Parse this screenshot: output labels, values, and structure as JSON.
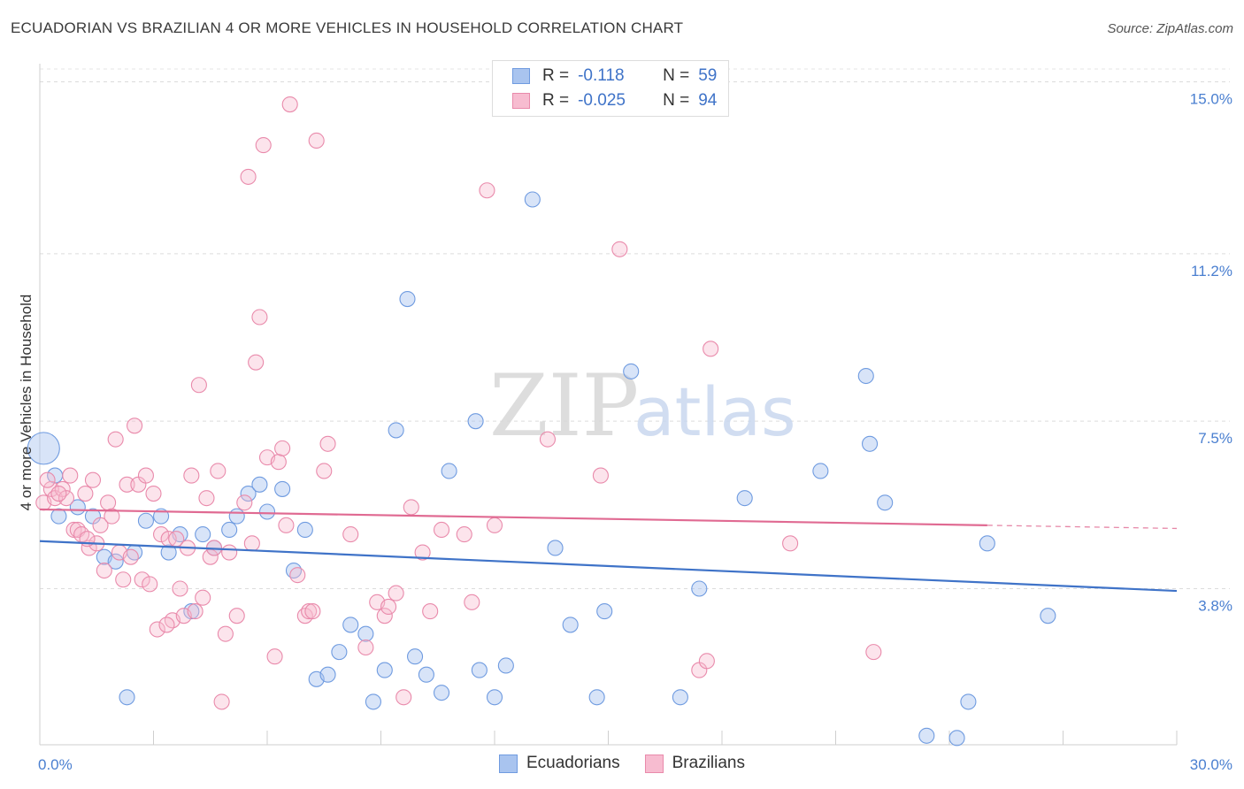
{
  "header": {
    "title": "ECUADORIAN VS BRAZILIAN 4 OR MORE VEHICLES IN HOUSEHOLD CORRELATION CHART",
    "source": "Source: ZipAtlas.com"
  },
  "watermark": {
    "zip": "ZIP",
    "atlas": "atlas"
  },
  "legend": {
    "rows": [
      {
        "r_label": "R =",
        "r_value": "-0.118",
        "n_label": "N =",
        "n_value": "59",
        "color": "#a9c4ef",
        "stroke": "#6f9be0"
      },
      {
        "r_label": "R =",
        "r_value": "-0.025",
        "n_label": "N =",
        "n_value": "94",
        "color": "#f7bcd0",
        "stroke": "#e98aab"
      }
    ]
  },
  "bottom_legend": {
    "items": [
      "Ecuadorians",
      "Brazilians"
    ]
  },
  "chart_data": {
    "type": "scatter",
    "title": "ECUADORIAN VS BRAZILIAN 4 OR MORE VEHICLES IN HOUSEHOLD CORRELATION CHART",
    "xlabel": "",
    "ylabel": "4 or more Vehicles in Household",
    "xlim": [
      0,
      30
    ],
    "ylim": [
      0.35,
      15.4
    ],
    "x_tick_labels": [
      "0.0%",
      "30.0%"
    ],
    "y_ticks": [
      3.8,
      7.5,
      11.2,
      15.0
    ],
    "y_tick_labels": [
      "3.8%",
      "7.5%",
      "11.2%",
      "15.0%"
    ],
    "grid": true,
    "legend_position": "top-center",
    "colors": {
      "ecuadorians": "#6f9be0",
      "brazilians": "#e98aab",
      "ecuadorians_line": "#3f73c8",
      "brazilians_line": "#e06a92"
    },
    "series": [
      {
        "name": "Ecuadorians",
        "trend": {
          "x0": 0,
          "y0": 4.85,
          "x1": 30,
          "y1": 3.75
        },
        "points": [
          [
            0.1,
            6.9
          ],
          [
            0.4,
            6.3
          ],
          [
            0.5,
            5.4
          ],
          [
            1.0,
            5.6
          ],
          [
            1.4,
            5.4
          ],
          [
            1.7,
            4.5
          ],
          [
            2.0,
            4.4
          ],
          [
            2.3,
            1.4
          ],
          [
            2.5,
            4.6
          ],
          [
            2.8,
            5.3
          ],
          [
            3.2,
            5.4
          ],
          [
            3.4,
            4.6
          ],
          [
            3.7,
            5.0
          ],
          [
            4.0,
            3.3
          ],
          [
            4.3,
            5.0
          ],
          [
            4.6,
            4.7
          ],
          [
            5.0,
            5.1
          ],
          [
            5.2,
            5.4
          ],
          [
            5.5,
            5.9
          ],
          [
            5.8,
            6.1
          ],
          [
            6.0,
            5.5
          ],
          [
            6.4,
            6.0
          ],
          [
            6.7,
            4.2
          ],
          [
            7.0,
            5.1
          ],
          [
            7.3,
            1.8
          ],
          [
            7.6,
            1.9
          ],
          [
            7.9,
            2.4
          ],
          [
            8.2,
            3.0
          ],
          [
            8.6,
            2.8
          ],
          [
            8.8,
            1.3
          ],
          [
            9.1,
            2.0
          ],
          [
            9.4,
            7.3
          ],
          [
            9.7,
            10.2
          ],
          [
            9.9,
            2.3
          ],
          [
            10.2,
            1.9
          ],
          [
            10.6,
            1.5
          ],
          [
            10.8,
            6.4
          ],
          [
            11.5,
            7.5
          ],
          [
            11.6,
            2.0
          ],
          [
            12.0,
            1.4
          ],
          [
            12.3,
            2.1
          ],
          [
            13.0,
            12.4
          ],
          [
            13.6,
            4.7
          ],
          [
            14.0,
            3.0
          ],
          [
            14.7,
            1.4
          ],
          [
            14.9,
            3.3
          ],
          [
            15.6,
            8.6
          ],
          [
            16.9,
            1.4
          ],
          [
            17.4,
            3.8
          ],
          [
            18.6,
            5.8
          ],
          [
            20.6,
            6.4
          ],
          [
            21.8,
            8.5
          ],
          [
            21.9,
            7.0
          ],
          [
            22.3,
            5.7
          ],
          [
            23.4,
            0.55
          ],
          [
            24.2,
            0.5
          ],
          [
            24.5,
            1.3
          ],
          [
            25.0,
            4.8
          ],
          [
            26.6,
            3.2
          ]
        ]
      },
      {
        "name": "Brazilians",
        "trend": {
          "x0": 0,
          "y0": 5.55,
          "x1": 25,
          "y1": 5.2
        },
        "points": [
          [
            0.1,
            5.7
          ],
          [
            0.3,
            6.0
          ],
          [
            0.4,
            5.8
          ],
          [
            0.6,
            6.0
          ],
          [
            0.7,
            5.8
          ],
          [
            0.8,
            6.3
          ],
          [
            0.9,
            5.1
          ],
          [
            1.0,
            5.1
          ],
          [
            1.1,
            5.0
          ],
          [
            1.2,
            5.9
          ],
          [
            1.3,
            4.7
          ],
          [
            1.4,
            6.2
          ],
          [
            1.5,
            4.8
          ],
          [
            1.6,
            5.2
          ],
          [
            1.7,
            4.2
          ],
          [
            1.8,
            5.7
          ],
          [
            1.9,
            5.4
          ],
          [
            2.0,
            7.1
          ],
          [
            2.1,
            4.6
          ],
          [
            2.2,
            4.0
          ],
          [
            2.3,
            6.1
          ],
          [
            2.4,
            4.5
          ],
          [
            2.5,
            7.4
          ],
          [
            2.6,
            6.1
          ],
          [
            2.7,
            4.0
          ],
          [
            2.8,
            6.3
          ],
          [
            2.9,
            3.9
          ],
          [
            3.0,
            5.9
          ],
          [
            3.1,
            2.9
          ],
          [
            3.2,
            5.0
          ],
          [
            3.4,
            4.9
          ],
          [
            3.5,
            3.1
          ],
          [
            3.6,
            4.9
          ],
          [
            3.7,
            3.8
          ],
          [
            3.8,
            3.2
          ],
          [
            3.9,
            4.7
          ],
          [
            4.0,
            6.3
          ],
          [
            4.1,
            3.3
          ],
          [
            4.2,
            8.3
          ],
          [
            4.3,
            3.6
          ],
          [
            4.4,
            5.8
          ],
          [
            4.5,
            4.5
          ],
          [
            4.6,
            4.7
          ],
          [
            4.7,
            6.4
          ],
          [
            4.8,
            1.3
          ],
          [
            4.9,
            2.8
          ],
          [
            5.0,
            4.6
          ],
          [
            5.2,
            3.2
          ],
          [
            5.4,
            5.7
          ],
          [
            5.6,
            4.8
          ],
          [
            5.7,
            8.8
          ],
          [
            5.8,
            9.8
          ],
          [
            5.9,
            13.6
          ],
          [
            5.5,
            12.9
          ],
          [
            6.0,
            6.7
          ],
          [
            6.2,
            2.3
          ],
          [
            6.3,
            6.6
          ],
          [
            6.4,
            6.9
          ],
          [
            6.5,
            5.2
          ],
          [
            6.6,
            14.5
          ],
          [
            6.8,
            4.1
          ],
          [
            7.0,
            3.2
          ],
          [
            7.1,
            3.3
          ],
          [
            7.2,
            3.3
          ],
          [
            7.3,
            13.7
          ],
          [
            7.5,
            6.4
          ],
          [
            7.6,
            7.0
          ],
          [
            8.2,
            5.0
          ],
          [
            8.6,
            2.5
          ],
          [
            8.9,
            3.5
          ],
          [
            9.1,
            3.2
          ],
          [
            9.2,
            3.4
          ],
          [
            9.4,
            3.7
          ],
          [
            9.6,
            1.4
          ],
          [
            9.8,
            5.6
          ],
          [
            10.1,
            4.6
          ],
          [
            10.3,
            3.3
          ],
          [
            10.6,
            5.1
          ],
          [
            11.2,
            5.0
          ],
          [
            11.4,
            3.5
          ],
          [
            11.8,
            12.6
          ],
          [
            12.0,
            5.2
          ],
          [
            13.4,
            7.1
          ],
          [
            14.8,
            6.3
          ],
          [
            15.3,
            11.3
          ],
          [
            17.4,
            2.0
          ],
          [
            17.6,
            2.2
          ],
          [
            17.7,
            9.1
          ],
          [
            19.8,
            4.8
          ],
          [
            22.0,
            2.4
          ],
          [
            0.2,
            6.2
          ],
          [
            0.5,
            5.9
          ],
          [
            1.25,
            4.9
          ],
          [
            3.35,
            3.0
          ]
        ]
      }
    ]
  }
}
